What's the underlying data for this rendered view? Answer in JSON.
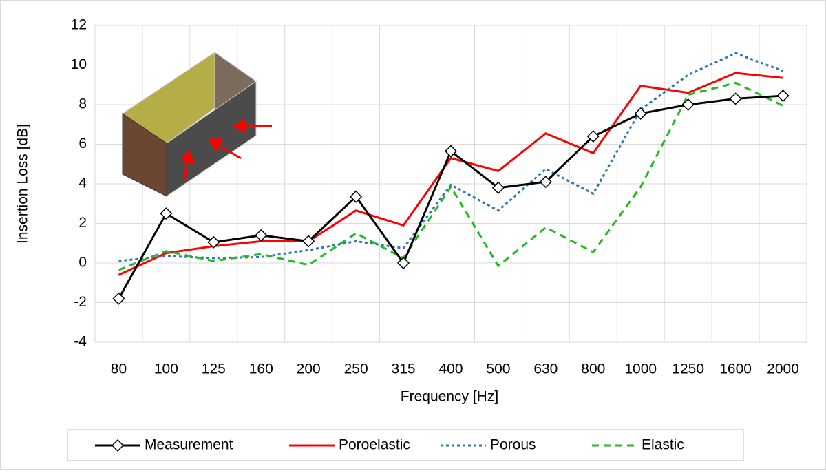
{
  "chart_data": {
    "type": "line",
    "x_label": "Frequency [Hz]",
    "y_label": "Insertion Loss [dB]",
    "categories": [
      "80",
      "100",
      "125",
      "160",
      "200",
      "250",
      "315",
      "400",
      "500",
      "630",
      "800",
      "1000",
      "1250",
      "1600",
      "2000"
    ],
    "ylim": [
      -4,
      12
    ],
    "yticks": [
      -4,
      -2,
      0,
      2,
      4,
      6,
      8,
      10,
      12
    ],
    "grid": true,
    "legend": "bottom",
    "series": [
      {
        "name": "Measurement",
        "color": "#000000",
        "dash": "solid",
        "marker": "diamond",
        "values": [
          -1.8,
          2.5,
          1.05,
          1.4,
          1.1,
          3.35,
          0,
          5.65,
          3.8,
          4.1,
          6.4,
          7.55,
          8.0,
          8.3,
          8.45
        ]
      },
      {
        "name": "Poroelastic",
        "color": "#ff0000",
        "dash": "solid",
        "values": [
          -0.6,
          0.5,
          0.85,
          1.1,
          1.1,
          2.65,
          1.9,
          5.3,
          4.65,
          6.55,
          5.55,
          8.95,
          8.6,
          9.6,
          9.35
        ]
      },
      {
        "name": "Porous",
        "color": "#2e75b6",
        "dash": "short",
        "values": [
          0.1,
          0.35,
          0.25,
          0.3,
          0.65,
          1.1,
          0.75,
          3.95,
          2.65,
          4.75,
          3.5,
          7.75,
          9.5,
          10.6,
          9.7
        ]
      },
      {
        "name": "Elastic",
        "color": "#22bb22",
        "dash": "long",
        "values": [
          -0.35,
          0.6,
          0.1,
          0.45,
          -0.1,
          1.5,
          0.25,
          3.85,
          -0.15,
          1.8,
          0.55,
          3.85,
          8.5,
          9.1,
          7.95
        ]
      }
    ]
  }
}
